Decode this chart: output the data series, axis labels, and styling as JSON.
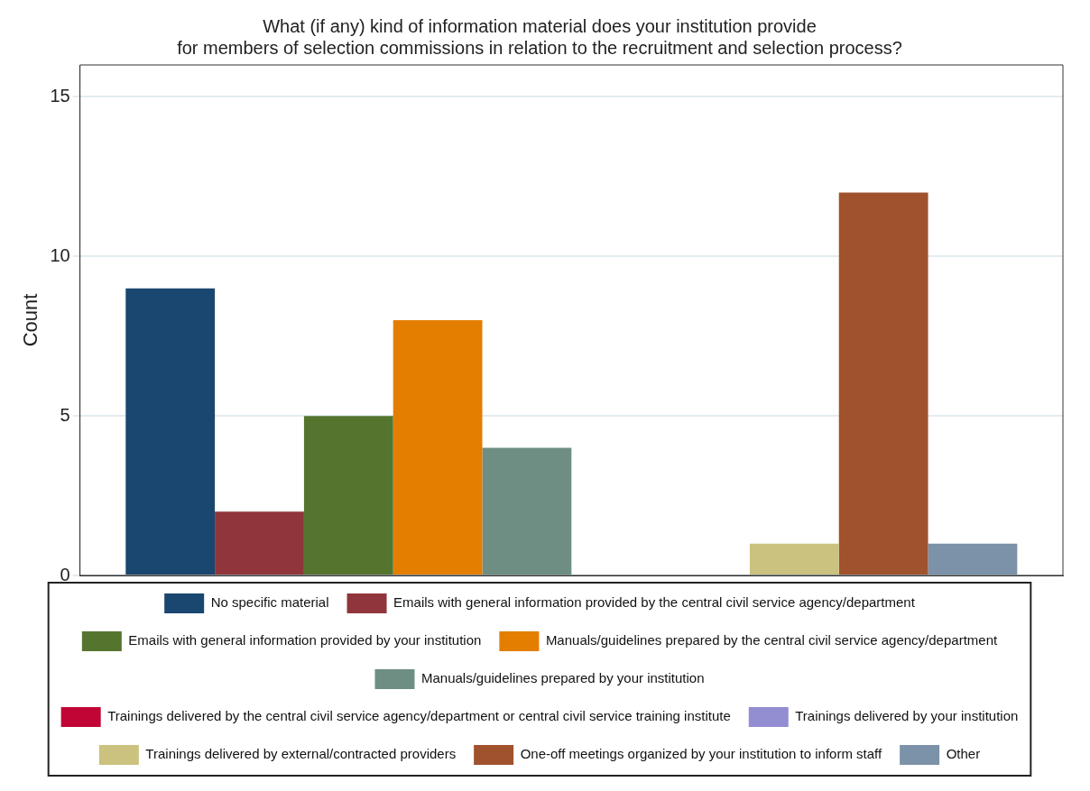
{
  "chart_data": {
    "type": "bar",
    "title": "What (if any) kind of information material does your institution provide\nfor members of selection commissions in relation to the recruitment and selection process?",
    "ylabel": "Count",
    "categories": [
      null
    ],
    "series": [
      {
        "name": "No specific material",
        "color": "#1a476f",
        "values": [
          9
        ]
      },
      {
        "name": "Emails with general information provided by the central civil service agency/department",
        "color": "#90353b",
        "values": [
          2
        ]
      },
      {
        "name": "Emails with general information provided by your institution",
        "color": "#55752f",
        "values": [
          5
        ]
      },
      {
        "name": "Manuals/guidelines prepared by the central civil service agency/department",
        "color": "#e37e00",
        "values": [
          8
        ]
      },
      {
        "name": "Manuals/guidelines prepared by your institution",
        "color": "#6e8e84",
        "values": [
          4
        ]
      },
      {
        "name": "Trainings delivered by the central civil service agency/department or central civil service training institute",
        "color": "#c10534",
        "values": [
          0
        ]
      },
      {
        "name": "Trainings delivered by your institution",
        "color": "#938dd2",
        "values": [
          0
        ]
      },
      {
        "name": "Trainings delivered by external/contracted providers",
        "color": "#cac27e",
        "values": [
          1
        ]
      },
      {
        "name": "One-off meetings organized by your institution to inform staff",
        "color": "#a0522d",
        "values": [
          12
        ]
      },
      {
        "name": "Other",
        "color": "#7b92a8",
        "values": [
          1
        ]
      }
    ],
    "ylim": [
      0,
      16
    ],
    "yticks": [
      0,
      5,
      10,
      15
    ],
    "grid": "y",
    "legend": "bottom"
  }
}
